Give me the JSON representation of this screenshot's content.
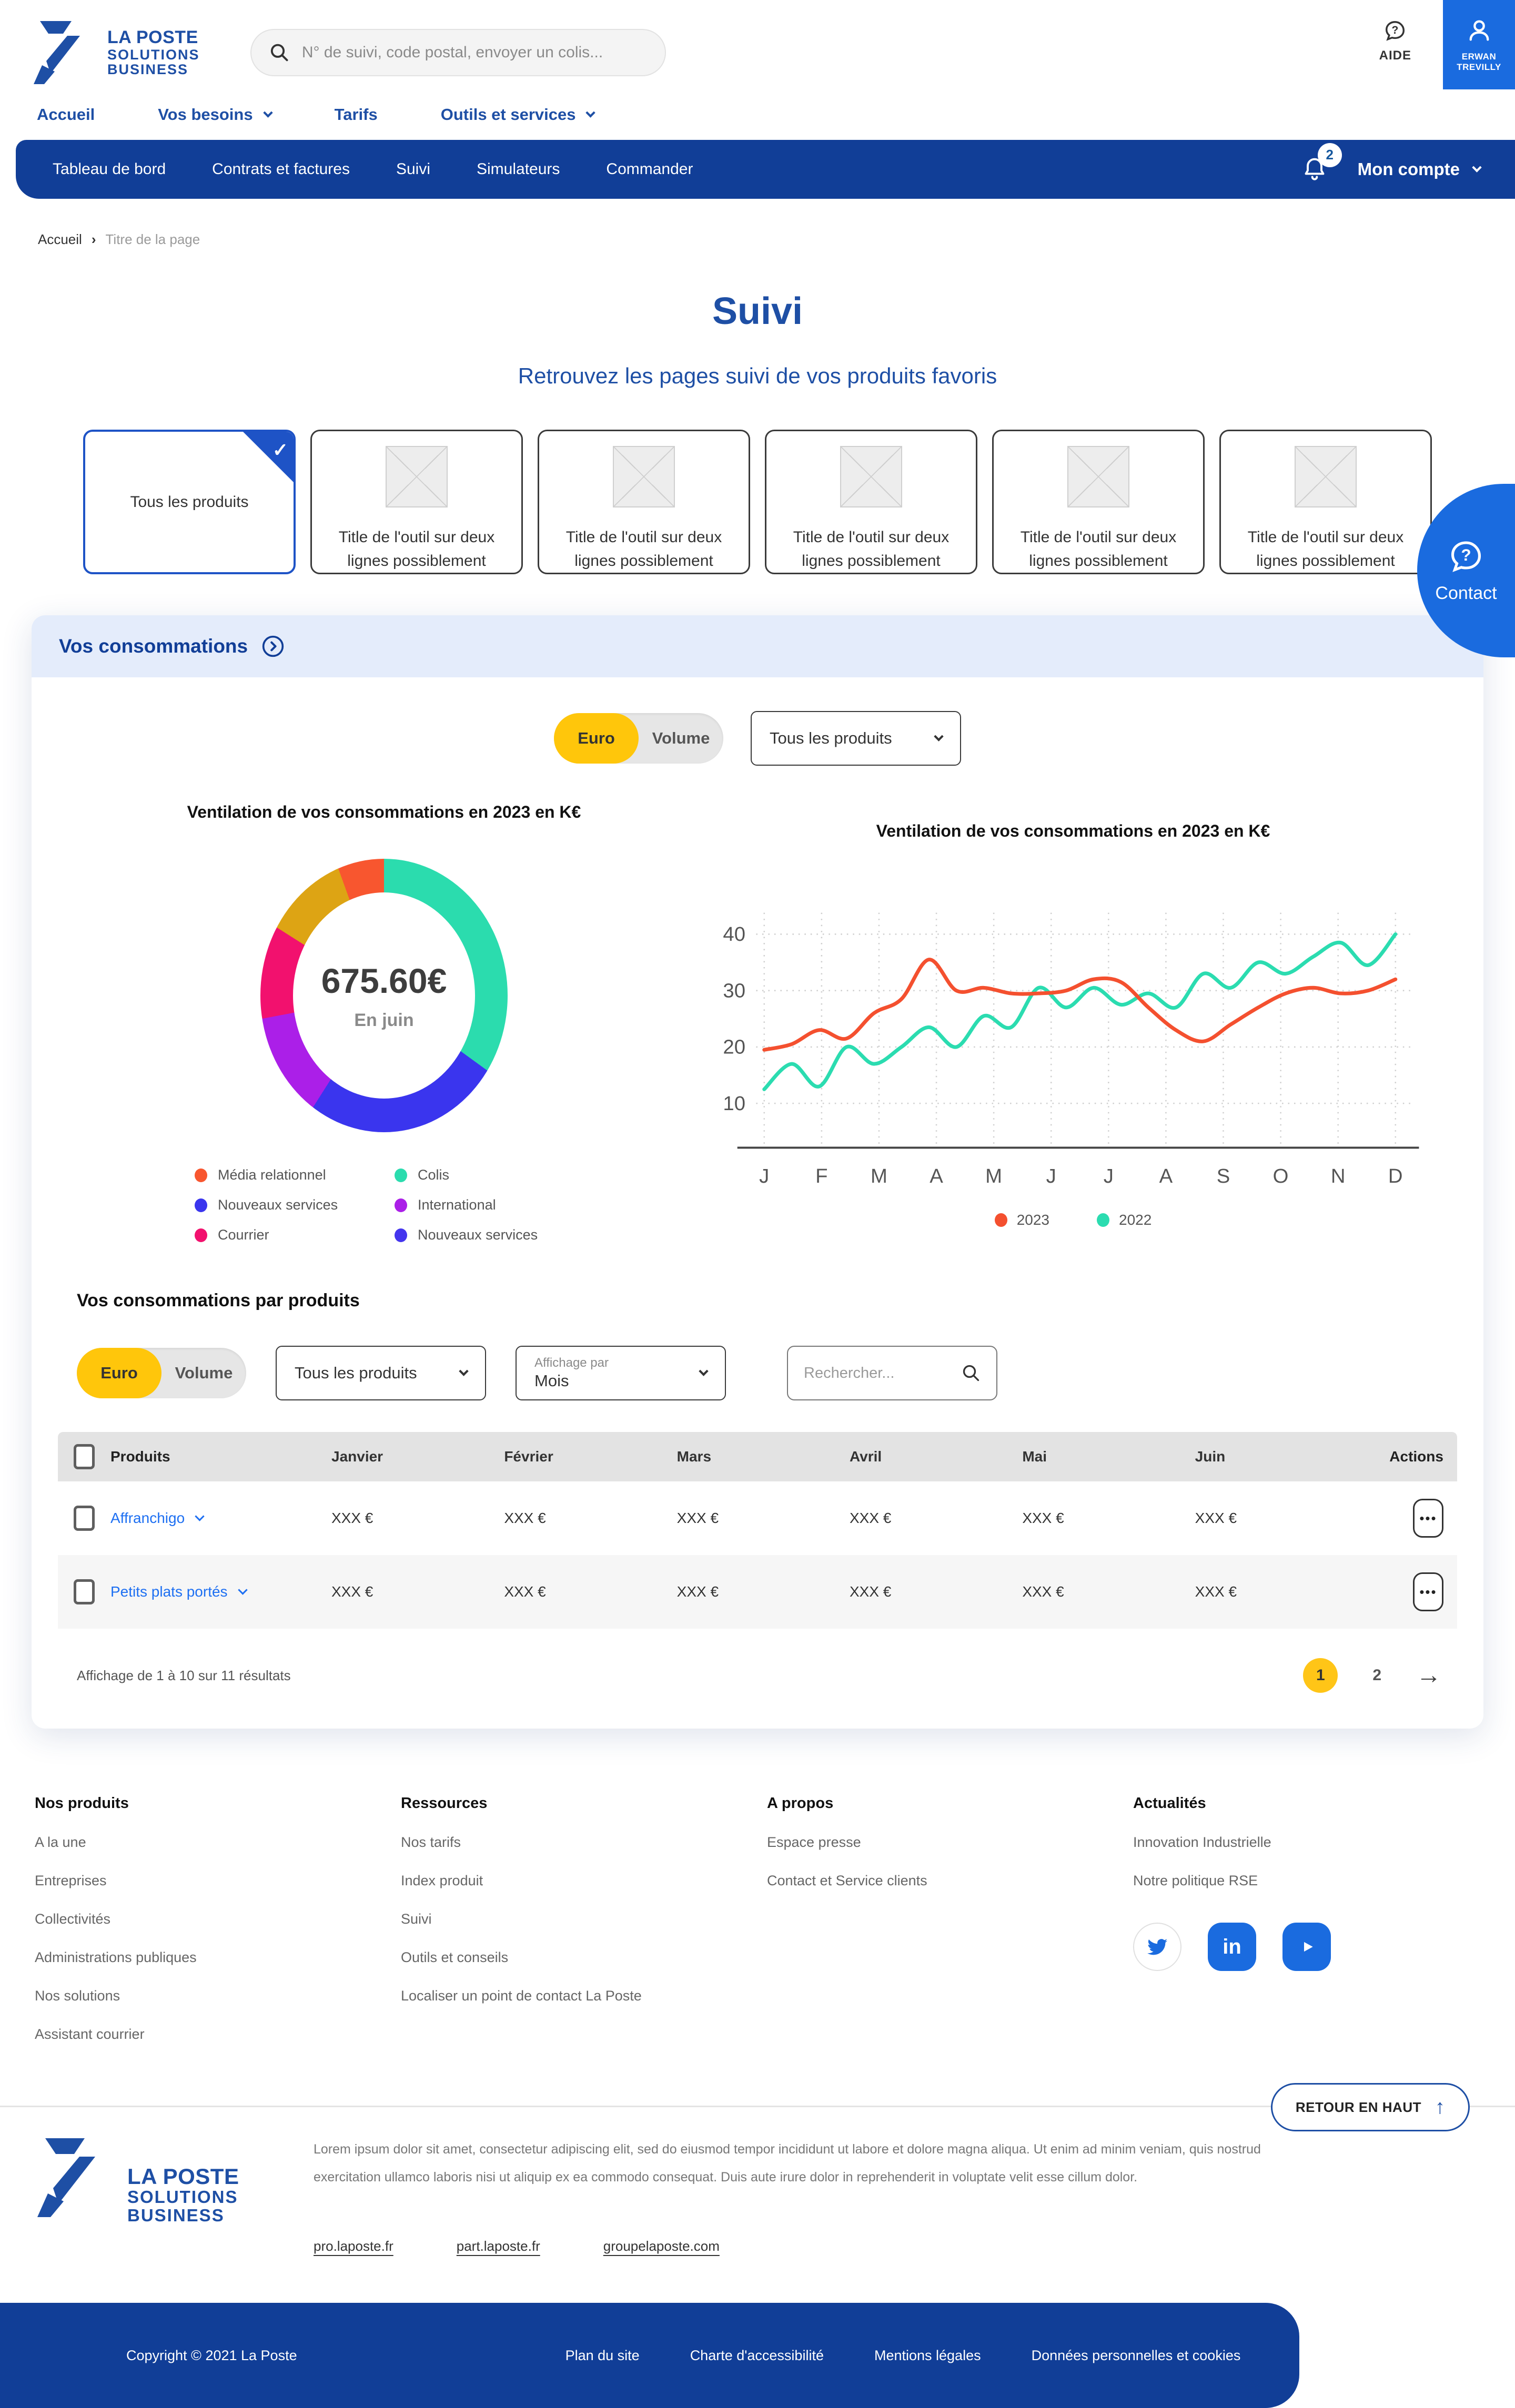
{
  "brand": {
    "line1": "LA POSTE",
    "line2": "SOLUTIONS",
    "line3": "BUSINESS"
  },
  "header": {
    "search_placeholder": "N° de suivi, code postal, envoyer un colis...",
    "help_label": "AIDE",
    "user_name": "ERWAN TREVILLY"
  },
  "main_nav": {
    "items": [
      "Accueil",
      "Vos besoins",
      "Tarifs",
      "Outils et services"
    ]
  },
  "sub_nav": {
    "items": [
      "Tableau de bord",
      "Contrats et factures",
      "Suivi",
      "Simulateurs",
      "Commander"
    ],
    "notifications_count": "2",
    "account_label": "Mon compte"
  },
  "breadcrumb": {
    "home": "Accueil",
    "current": "Titre de la page"
  },
  "hero": {
    "title": "Suivi",
    "subtitle": "Retrouvez les pages suivi de vos produits favoris"
  },
  "product_cards": {
    "selected_label": "Tous les produits",
    "other_title": "Title de l'outil sur deux lignes possiblement"
  },
  "contact": {
    "label": "Contact"
  },
  "consommations": {
    "section_title": "Vos consommations",
    "toggle": {
      "euro": "Euro",
      "volume": "Volume",
      "selected": "Euro"
    },
    "product_filter": "Tous les produits",
    "donut": {
      "title": "Ventilation de vos consommations en 2023 en K€",
      "center_value": "675.60€",
      "center_label": "En juin",
      "legend": [
        {
          "label": "Média relationnel",
          "color": "#F8562F"
        },
        {
          "label": "Colis",
          "color": "#2BDCAE"
        },
        {
          "label": "Nouveaux services",
          "color": "#3A35EE"
        },
        {
          "label": "International",
          "color": "#AB1FE8"
        },
        {
          "label": "Courrier",
          "color": "#F2116E"
        },
        {
          "label": "Nouveaux services",
          "color": "#4435EE"
        }
      ],
      "chart_data": {
        "type": "pie",
        "title": "Ventilation de vos consommations en 2023 en K€",
        "unit": "% of ring, clockwise from top",
        "segments": [
          {
            "label": "Colis",
            "color": "#2BDCAE",
            "value": 35
          },
          {
            "label": "Nouveaux services",
            "color": "#3A35EE",
            "value": 24
          },
          {
            "label": "International",
            "color": "#AB1FE8",
            "value": 13
          },
          {
            "label": "Courrier",
            "color": "#F2116E",
            "value": 12
          },
          {
            "label": "",
            "color": "#DDA414",
            "value": 10.5
          },
          {
            "label": "Média relationnel",
            "color": "#F8562F",
            "value": 5.5
          }
        ]
      }
    },
    "line": {
      "title": "Ventilation de vos consommations en 2023 en K€",
      "chart_data": {
        "type": "line",
        "x_labels": [
          "J",
          "F",
          "M",
          "A",
          "M",
          "J",
          "J",
          "A",
          "S",
          "O",
          "N",
          "D"
        ],
        "y_ticks": [
          10,
          20,
          30,
          40
        ],
        "ylim": [
          0,
          42
        ],
        "grid": true,
        "legend_position": "bottom",
        "series": [
          {
            "name": "2023",
            "color": "#F4502F",
            "monthly_values": [
              19.5,
              22,
              28,
              35.5,
              30,
              29.5,
              32,
              22,
              27,
              30.5,
              30,
              32
            ],
            "sampled_values": [
              19.5,
              20.5,
              23,
              21.5,
              26,
              28.5,
              35.5,
              30,
              30.5,
              29.5,
              29.5,
              30,
              32,
              31.5,
              27,
              23,
              21,
              24,
              27,
              29.5,
              30.5,
              29.5,
              30,
              32
            ]
          },
          {
            "name": "2022",
            "color": "#2BDCB0",
            "monthly_values": [
              13,
              17,
              18,
              23.5,
              25.5,
              30.5,
              29,
              28,
              33,
              35,
              38,
              40
            ],
            "sampled_values": [
              12.5,
              17,
              13,
              20,
              17,
              20,
              23.5,
              20,
              25.5,
              23.5,
              30.5,
              27,
              30.5,
              27.5,
              29.5,
              27,
              33,
              30.5,
              35,
              33,
              36,
              38.5,
              34.5,
              40
            ]
          }
        ]
      }
    }
  },
  "products_table": {
    "title": "Vos consommations par produits",
    "filters": {
      "toggle": {
        "euro": "Euro",
        "volume": "Volume",
        "selected": "Euro"
      },
      "product_filter": "Tous les produits",
      "display_label": "Affichage par",
      "display_value": "Mois",
      "search_placeholder": "Rechercher..."
    },
    "columns": {
      "product": "Produits",
      "m1": "Janvier",
      "m2": "Février",
      "m3": "Mars",
      "m4": "Avril",
      "m5": "Mai",
      "m6": "Juin",
      "actions": "Actions"
    },
    "rows": [
      {
        "product": "Affranchigo",
        "values": [
          "XXX €",
          "XXX €",
          "XXX €",
          "XXX €",
          "XXX €",
          "XXX €"
        ]
      },
      {
        "product": "Petits plats portés",
        "values": [
          "XXX €",
          "XXX €",
          "XXX €",
          "XXX €",
          "XXX €",
          "XXX €"
        ]
      }
    ],
    "summary": "Affichage de 1 à 10 sur 11 résultats",
    "pagination": {
      "page1": "1",
      "page2": "2",
      "active": "1"
    }
  },
  "footer": {
    "columns": [
      {
        "title": "Nos produits",
        "links": [
          "A la une",
          "Entreprises",
          "Collectivités",
          "Administrations publiques",
          "Nos solutions",
          "Assistant courrier"
        ]
      },
      {
        "title": "Ressources",
        "links": [
          "Nos tarifs",
          "Index produit",
          "Suivi",
          "Outils et conseils",
          "Localiser un point de contact La Poste"
        ]
      },
      {
        "title": "A propos",
        "links": [
          "Espace presse",
          "Contact et Service clients"
        ]
      },
      {
        "title": "Actualités",
        "links": [
          "Innovation Industrielle",
          "Notre politique RSE"
        ]
      }
    ],
    "social": [
      "twitter",
      "linkedin",
      "youtube"
    ],
    "back_to_top": "RETOUR EN HAUT",
    "legal_text": "Lorem ipsum dolor sit amet, consectetur adipiscing elit, sed do eiusmod tempor incididunt ut labore et dolore magna aliqua. Ut enim ad minim veniam, quis nostrud exercitation ullamco laboris nisi ut aliquip ex ea commodo consequat. Duis aute irure dolor in reprehenderit in voluptate velit esse cillum dolor.",
    "site_links": [
      "pro.laposte.fr",
      "part.laposte.fr",
      "groupelaposte.com"
    ],
    "bottom": {
      "copyright": "Copyright © 2021 La Poste",
      "links": [
        "Plan du site",
        "Charte d'accessibilité",
        "Mentions légales",
        "Données personnelles et cookies"
      ]
    }
  }
}
